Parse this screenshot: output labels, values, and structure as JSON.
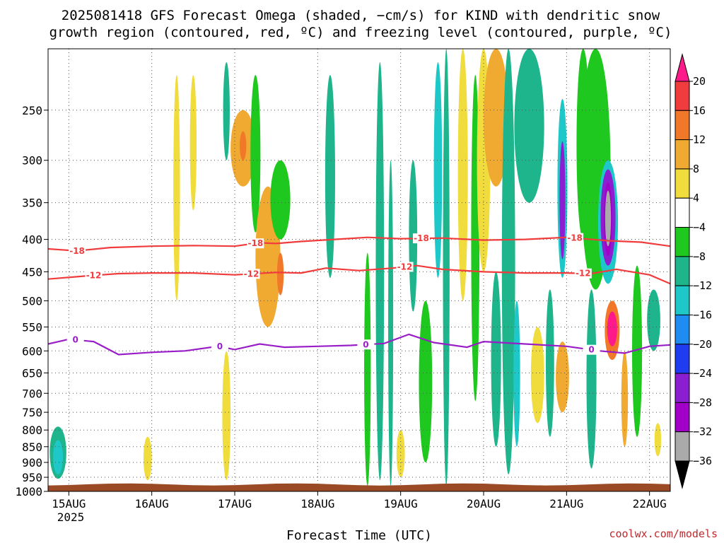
{
  "chart_data": {
    "type": "heatmap",
    "title_lines": [
      "2025081418 GFS Forecast Omega (shaded, −cm/s) for KIND with dendritic snow",
      "growth region (contoured, red, ºC) and freezing level (contoured, purple, ºC)"
    ],
    "xlabel": "Forecast Time (UTC)",
    "ylabel": "",
    "x_ticks": [
      "15AUG",
      "16AUG",
      "17AUG",
      "18AUG",
      "19AUG",
      "20AUG",
      "21AUG",
      "22AUG"
    ],
    "x_tick_sublabel": "2025",
    "y_ticks": [
      250,
      300,
      350,
      400,
      450,
      500,
      550,
      600,
      650,
      700,
      750,
      800,
      850,
      900,
      950,
      1000
    ],
    "y_axis": "pressure (hPa, log)",
    "ylim": [
      1000,
      200
    ],
    "xlim_days": [
      14.75,
      22.25
    ],
    "grid": true,
    "colorbar": {
      "levels": [
        20,
        16,
        12,
        8,
        4,
        -4,
        -8,
        -12,
        -16,
        -20,
        -24,
        -28,
        -32,
        -36
      ],
      "colors": [
        "#ff1a8c",
        "#f03c3c",
        "#f07828",
        "#f0aa32",
        "#f0dc3c",
        "#ffffff",
        "#1ec81e",
        "#1eb48c",
        "#1ec8c8",
        "#1e8cf0",
        "#1e3cf0",
        "#8c1ed2",
        "#a000c8",
        "#aaaaaa",
        "#000000"
      ],
      "placement": "right"
    },
    "contours": [
      {
        "name": "dendritic growth -18C",
        "color": "#f03c3c",
        "label": "-18",
        "points": [
          [
            14.75,
            414
          ],
          [
            15.1,
            417
          ],
          [
            15.5,
            412
          ],
          [
            16.0,
            410
          ],
          [
            16.5,
            409
          ],
          [
            17.0,
            410
          ],
          [
            17.3,
            405
          ],
          [
            17.5,
            406
          ],
          [
            17.8,
            403
          ],
          [
            18.2,
            400
          ],
          [
            18.6,
            397
          ],
          [
            19.0,
            399
          ],
          [
            19.5,
            398
          ],
          [
            20.0,
            401
          ],
          [
            20.5,
            400
          ],
          [
            21.0,
            397
          ],
          [
            21.5,
            402
          ],
          [
            21.9,
            404
          ],
          [
            22.25,
            410
          ]
        ],
        "label_at": [
          15.1,
          17.25,
          19.25,
          21.1
        ]
      },
      {
        "name": "dendritic growth -12C",
        "color": "#f03c3c",
        "label": "-12",
        "points": [
          [
            14.75,
            462
          ],
          [
            15.2,
            457
          ],
          [
            15.6,
            453
          ],
          [
            16.0,
            452
          ],
          [
            16.5,
            452
          ],
          [
            17.0,
            455
          ],
          [
            17.5,
            451
          ],
          [
            17.8,
            452
          ],
          [
            18.1,
            444
          ],
          [
            18.5,
            448
          ],
          [
            18.9,
            444
          ],
          [
            19.2,
            440
          ],
          [
            19.5,
            446
          ],
          [
            20.0,
            450
          ],
          [
            20.5,
            452
          ],
          [
            21.0,
            452
          ],
          [
            21.3,
            453
          ],
          [
            21.6,
            446
          ],
          [
            22.0,
            455
          ],
          [
            22.25,
            470
          ]
        ],
        "label_at": [
          15.3,
          17.2,
          19.05,
          21.2
        ]
      },
      {
        "name": "freezing level 0C",
        "color": "#9a1ec8",
        "label": "0",
        "points": [
          [
            14.75,
            585
          ],
          [
            15.0,
            575
          ],
          [
            15.3,
            580
          ],
          [
            15.6,
            608
          ],
          [
            16.0,
            603
          ],
          [
            16.4,
            600
          ],
          [
            16.8,
            590
          ],
          [
            17.0,
            597
          ],
          [
            17.3,
            585
          ],
          [
            17.6,
            592
          ],
          [
            18.0,
            590
          ],
          [
            18.4,
            588
          ],
          [
            18.8,
            584
          ],
          [
            19.1,
            565
          ],
          [
            19.4,
            582
          ],
          [
            19.8,
            592
          ],
          [
            20.0,
            580
          ],
          [
            20.5,
            585
          ],
          [
            21.0,
            590
          ],
          [
            21.4,
            600
          ],
          [
            21.7,
            605
          ],
          [
            22.0,
            590
          ],
          [
            22.25,
            587
          ]
        ],
        "label_at": [
          15.08,
          16.82,
          18.58,
          21.3
        ]
      }
    ],
    "omega_cells": [
      {
        "t": 14.87,
        "p_top": 790,
        "p_bot": 955,
        "half_w": 0.1,
        "v": -12
      },
      {
        "t": 14.87,
        "p_top": 830,
        "p_bot": 940,
        "half_w": 0.06,
        "v": -16
      },
      {
        "t": 16.3,
        "p_top": 220,
        "p_bot": 500,
        "half_w": 0.04,
        "v": 6
      },
      {
        "t": 16.5,
        "p_top": 220,
        "p_bot": 360,
        "half_w": 0.04,
        "v": 6
      },
      {
        "t": 15.95,
        "p_top": 820,
        "p_bot": 960,
        "half_w": 0.05,
        "v": 6
      },
      {
        "t": 16.9,
        "p_top": 600,
        "p_bot": 960,
        "half_w": 0.05,
        "v": 6
      },
      {
        "t": 17.1,
        "p_top": 250,
        "p_bot": 330,
        "half_w": 0.15,
        "v": 10
      },
      {
        "t": 17.1,
        "p_top": 270,
        "p_bot": 300,
        "half_w": 0.04,
        "v": 14
      },
      {
        "t": 17.25,
        "p_top": 220,
        "p_bot": 390,
        "half_w": 0.06,
        "v": -8
      },
      {
        "t": 16.9,
        "p_top": 210,
        "p_bot": 300,
        "half_w": 0.04,
        "v": -12
      },
      {
        "t": 17.4,
        "p_top": 330,
        "p_bot": 550,
        "half_w": 0.15,
        "v": 8
      },
      {
        "t": 17.55,
        "p_top": 420,
        "p_bot": 490,
        "half_w": 0.04,
        "v": 14
      },
      {
        "t": 17.55,
        "p_top": 300,
        "p_bot": 400,
        "half_w": 0.12,
        "v": -8
      },
      {
        "t": 18.15,
        "p_top": 220,
        "p_bot": 460,
        "half_w": 0.06,
        "v": -10
      },
      {
        "t": 18.6,
        "p_top": 420,
        "p_bot": 980,
        "half_w": 0.04,
        "v": -8
      },
      {
        "t": 18.75,
        "p_top": 210,
        "p_bot": 960,
        "half_w": 0.05,
        "v": -10
      },
      {
        "t": 18.88,
        "p_top": 300,
        "p_bot": 980,
        "half_w": 0.03,
        "v": -12
      },
      {
        "t": 19.0,
        "p_top": 800,
        "p_bot": 950,
        "half_w": 0.05,
        "v": 6
      },
      {
        "t": 19.15,
        "p_top": 300,
        "p_bot": 520,
        "half_w": 0.05,
        "v": -12
      },
      {
        "t": 19.3,
        "p_top": 500,
        "p_bot": 900,
        "half_w": 0.08,
        "v": -8
      },
      {
        "t": 19.45,
        "p_top": 210,
        "p_bot": 460,
        "half_w": 0.05,
        "v": -16
      },
      {
        "t": 19.55,
        "p_top": 200,
        "p_bot": 980,
        "half_w": 0.04,
        "v": -10
      },
      {
        "t": 19.75,
        "p_top": 200,
        "p_bot": 500,
        "half_w": 0.06,
        "v": 6
      },
      {
        "t": 19.9,
        "p_top": 220,
        "p_bot": 720,
        "half_w": 0.05,
        "v": -8
      },
      {
        "t": 20.0,
        "p_top": 200,
        "p_bot": 450,
        "half_w": 0.08,
        "v": 6
      },
      {
        "t": 20.15,
        "p_top": 200,
        "p_bot": 330,
        "half_w": 0.15,
        "v": 8
      },
      {
        "t": 20.15,
        "p_top": 450,
        "p_bot": 850,
        "half_w": 0.06,
        "v": -10
      },
      {
        "t": 20.3,
        "p_top": 200,
        "p_bot": 940,
        "half_w": 0.08,
        "v": -10
      },
      {
        "t": 20.4,
        "p_top": 500,
        "p_bot": 850,
        "half_w": 0.04,
        "v": -16
      },
      {
        "t": 20.55,
        "p_top": 200,
        "p_bot": 350,
        "half_w": 0.18,
        "v": -10
      },
      {
        "t": 20.65,
        "p_top": 550,
        "p_bot": 780,
        "half_w": 0.08,
        "v": 6
      },
      {
        "t": 20.8,
        "p_top": 480,
        "p_bot": 820,
        "half_w": 0.05,
        "v": -10
      },
      {
        "t": 20.95,
        "p_top": 240,
        "p_bot": 460,
        "half_w": 0.06,
        "v": -16
      },
      {
        "t": 20.95,
        "p_top": 280,
        "p_bot": 430,
        "half_w": 0.035,
        "v": -28
      },
      {
        "t": 20.95,
        "p_top": 580,
        "p_bot": 750,
        "half_w": 0.08,
        "v": 8
      },
      {
        "t": 21.2,
        "p_top": 200,
        "p_bot": 400,
        "half_w": 0.08,
        "v": -8
      },
      {
        "t": 21.3,
        "p_top": 480,
        "p_bot": 920,
        "half_w": 0.06,
        "v": -10
      },
      {
        "t": 21.35,
        "p_top": 200,
        "p_bot": 480,
        "half_w": 0.18,
        "v": -8
      },
      {
        "t": 21.5,
        "p_top": 300,
        "p_bot": 470,
        "half_w": 0.12,
        "v": -16
      },
      {
        "t": 21.5,
        "p_top": 310,
        "p_bot": 440,
        "half_w": 0.09,
        "v": -28
      },
      {
        "t": 21.5,
        "p_top": 325,
        "p_bot": 425,
        "half_w": 0.05,
        "v": -32
      },
      {
        "t": 21.5,
        "p_top": 335,
        "p_bot": 410,
        "half_w": 0.035,
        "v": -36
      },
      {
        "t": 21.55,
        "p_top": 500,
        "p_bot": 620,
        "half_w": 0.09,
        "v": 12
      },
      {
        "t": 21.55,
        "p_top": 520,
        "p_bot": 590,
        "half_w": 0.06,
        "v": 20
      },
      {
        "t": 21.7,
        "p_top": 600,
        "p_bot": 850,
        "half_w": 0.04,
        "v": 10
      },
      {
        "t": 21.85,
        "p_top": 440,
        "p_bot": 820,
        "half_w": 0.06,
        "v": -8
      },
      {
        "t": 22.05,
        "p_top": 480,
        "p_bot": 600,
        "half_w": 0.08,
        "v": -10
      },
      {
        "t": 22.1,
        "p_top": 780,
        "p_bot": 880,
        "half_w": 0.04,
        "v": 6
      }
    ]
  },
  "credit": "coolwx.com/models"
}
